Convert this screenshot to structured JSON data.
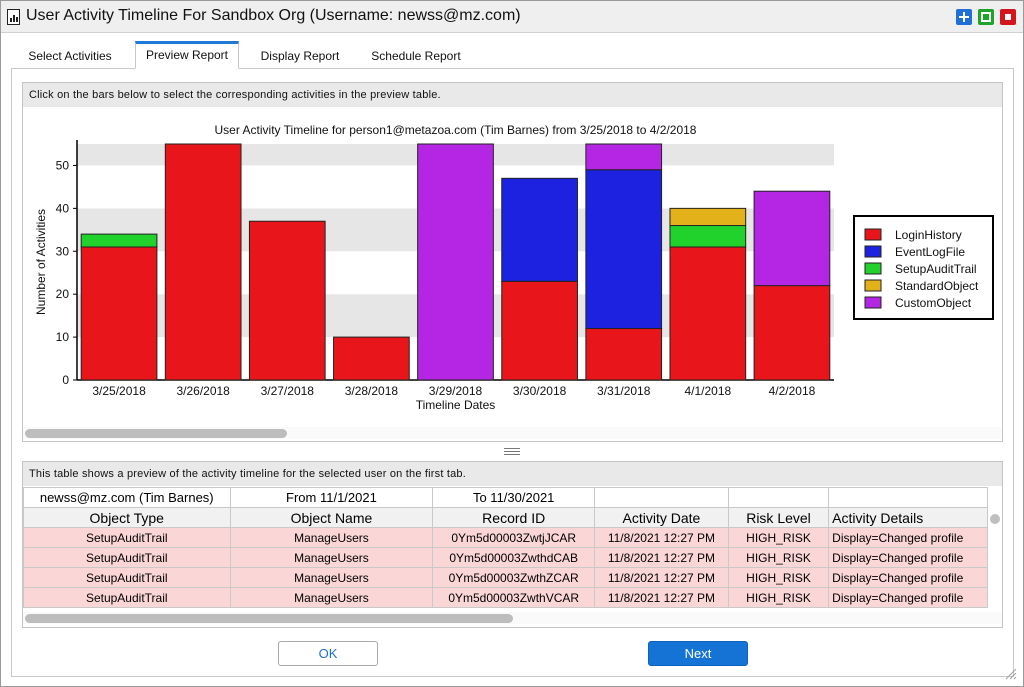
{
  "window": {
    "title": "User Activity Timeline For Sandbox Org (Username: newss@mz.com)",
    "controls": [
      "plus-icon",
      "maximize-icon",
      "close-icon"
    ]
  },
  "tabs": [
    {
      "label": "Select Activities",
      "active": false
    },
    {
      "label": "Preview Report",
      "active": true
    },
    {
      "label": "Display Report",
      "active": false
    },
    {
      "label": "Schedule Report",
      "active": false
    }
  ],
  "chart_panel": {
    "hint": "Click on the bars below to select the corresponding activities in the preview table."
  },
  "chart_data": {
    "type": "bar",
    "stacked": true,
    "title": "User Activity Timeline for person1@metazoa.com (Tim Barnes) from 3/25/2018 to 4/2/2018",
    "xlabel": "Timeline Dates",
    "ylabel": "Number of Activities",
    "ylim": [
      0,
      55
    ],
    "yticks": [
      0,
      10,
      20,
      30,
      40,
      50
    ],
    "grid": true,
    "legend_position": "right",
    "categories": [
      "3/25/2018",
      "3/26/2018",
      "3/27/2018",
      "3/28/2018",
      "3/29/2018",
      "3/30/2018",
      "3/31/2018",
      "4/1/2018",
      "4/2/2018"
    ],
    "series": [
      {
        "name": "LoginHistory",
        "color": "#e8161b",
        "values": [
          31,
          55,
          37,
          10,
          0,
          23,
          12,
          31,
          22
        ]
      },
      {
        "name": "EventLogFile",
        "color": "#1c22e0",
        "values": [
          0,
          0,
          0,
          0,
          0,
          24,
          37,
          0,
          0
        ]
      },
      {
        "name": "SetupAuditTrail",
        "color": "#22d22c",
        "values": [
          3,
          0,
          0,
          0,
          0,
          0,
          0,
          5,
          0
        ]
      },
      {
        "name": "StandardObject",
        "color": "#e3b21a",
        "values": [
          0,
          0,
          0,
          0,
          0,
          0,
          0,
          4,
          0
        ]
      },
      {
        "name": "CustomObject",
        "color": "#b526e4",
        "values": [
          0,
          0,
          0,
          0,
          55,
          0,
          6,
          0,
          22
        ]
      }
    ]
  },
  "table_panel": {
    "hint": "This table shows a preview of the activity timeline for the selected user on the first tab.",
    "meta": [
      "newss@mz.com (Tim Barnes)",
      "From 11/1/2021",
      "To 11/30/2021",
      "",
      "",
      ""
    ],
    "columns": [
      "Object Type",
      "Object Name",
      "Record ID",
      "Activity Date",
      "Risk Level",
      "Activity Details"
    ],
    "rows": [
      [
        "SetupAuditTrail",
        "ManageUsers",
        "0Ym5d00003ZwtjJCAR",
        "11/8/2021 12:27 PM",
        "HIGH_RISK",
        "Display=Changed profile"
      ],
      [
        "SetupAuditTrail",
        "ManageUsers",
        "0Ym5d00003ZwthdCAB",
        "11/8/2021 12:27 PM",
        "HIGH_RISK",
        "Display=Changed profile"
      ],
      [
        "SetupAuditTrail",
        "ManageUsers",
        "0Ym5d00003ZwthZCAR",
        "11/8/2021 12:27 PM",
        "HIGH_RISK",
        "Display=Changed profile"
      ],
      [
        "SetupAuditTrail",
        "ManageUsers",
        "0Ym5d00003ZwthVCAR",
        "11/8/2021 12:27 PM",
        "HIGH_RISK",
        "Display=Changed profile"
      ]
    ]
  },
  "buttons": {
    "ok": "OK",
    "next": "Next"
  }
}
